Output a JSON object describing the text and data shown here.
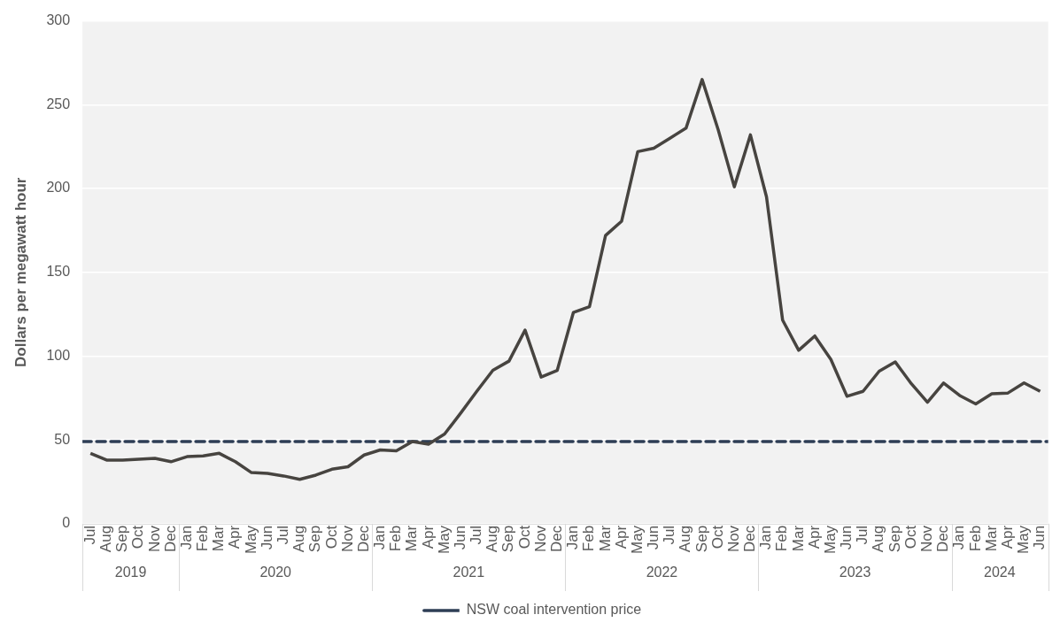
{
  "chart_data": {
    "type": "line",
    "ylabel": "Dollars per megawatt hour",
    "x": [
      "2019-07",
      "2019-08",
      "2019-09",
      "2019-10",
      "2019-11",
      "2019-12",
      "2020-01",
      "2020-02",
      "2020-03",
      "2020-04",
      "2020-05",
      "2020-06",
      "2020-07",
      "2020-08",
      "2020-09",
      "2020-10",
      "2020-11",
      "2020-12",
      "2021-01",
      "2021-02",
      "2021-03",
      "2021-04",
      "2021-05",
      "2021-06",
      "2021-07",
      "2021-08",
      "2021-09",
      "2021-10",
      "2021-11",
      "2021-12",
      "2022-01",
      "2022-02",
      "2022-03",
      "2022-04",
      "2022-05",
      "2022-06",
      "2022-07",
      "2022-08",
      "2022-09",
      "2022-10",
      "2022-11",
      "2022-12",
      "2023-01",
      "2023-02",
      "2023-03",
      "2023-04",
      "2023-05",
      "2023-06",
      "2023-07",
      "2023-08",
      "2023-09",
      "2023-10",
      "2023-11",
      "2023-12",
      "2024-01",
      "2024-02",
      "2024-03",
      "2024-04",
      "2024-05",
      "2024-06"
    ],
    "series": [
      {
        "color": "#474440",
        "values": [
          42,
          38,
          38,
          38.5,
          39,
          37,
          40,
          40.5,
          42,
          37,
          30.5,
          30,
          28.5,
          26.5,
          29,
          32.5,
          34,
          41,
          44,
          43.5,
          49,
          47.5,
          53.5,
          66,
          79,
          91.5,
          97,
          115.5,
          87.5,
          91.5,
          126,
          129.5,
          172,
          180.5,
          222,
          224,
          230,
          236,
          265,
          235,
          201,
          232,
          195,
          121.5,
          103.5,
          112,
          98,
          76,
          79,
          91,
          96.5,
          83.5,
          72.5,
          84,
          76.5,
          71.5,
          77.5,
          78,
          84,
          79
        ]
      }
    ],
    "ref_lines": [
      {
        "axis": "y",
        "value": 49,
        "label": "NSW coal intervention price",
        "color": "#2e3e55",
        "line_style": "dashed"
      }
    ],
    "xlim": [
      "2019-06-16",
      "2024-06-16"
    ],
    "xticks": [
      {
        "value": "2019-07",
        "label": "Jul"
      },
      {
        "value": "2019-08",
        "label": "Aug"
      },
      {
        "value": "2019-09",
        "label": "Sep"
      },
      {
        "value": "2019-10",
        "label": "Oct"
      },
      {
        "value": "2019-11",
        "label": "Nov"
      },
      {
        "value": "2019-12",
        "label": "Dec"
      },
      {
        "value": "2020-01",
        "label": "Jan"
      },
      {
        "value": "2020-02",
        "label": "Feb"
      },
      {
        "value": "2020-03",
        "label": "Mar"
      },
      {
        "value": "2020-04",
        "label": "Apr"
      },
      {
        "value": "2020-05",
        "label": "May"
      },
      {
        "value": "2020-06",
        "label": "Jun"
      },
      {
        "value": "2020-07",
        "label": "Jul"
      },
      {
        "value": "2020-08",
        "label": "Aug"
      },
      {
        "value": "2020-09",
        "label": "Sep"
      },
      {
        "value": "2020-10",
        "label": "Oct"
      },
      {
        "value": "2020-11",
        "label": "Nov"
      },
      {
        "value": "2020-12",
        "label": "Dec"
      },
      {
        "value": "2021-01",
        "label": "Jan"
      },
      {
        "value": "2021-02",
        "label": "Feb"
      },
      {
        "value": "2021-03",
        "label": "Mar"
      },
      {
        "value": "2021-04",
        "label": "Apr"
      },
      {
        "value": "2021-05",
        "label": "May"
      },
      {
        "value": "2021-06",
        "label": "Jun"
      },
      {
        "value": "2021-07",
        "label": "Jul"
      },
      {
        "value": "2021-08",
        "label": "Aug"
      },
      {
        "value": "2021-09",
        "label": "Sep"
      },
      {
        "value": "2021-10",
        "label": "Oct"
      },
      {
        "value": "2021-11",
        "label": "Nov"
      },
      {
        "value": "2021-12",
        "label": "Dec"
      },
      {
        "value": "2022-01",
        "label": "Jan"
      },
      {
        "value": "2022-02",
        "label": "Feb"
      },
      {
        "value": "2022-03",
        "label": "Mar"
      },
      {
        "value": "2022-04",
        "label": "Apr"
      },
      {
        "value": "2022-05",
        "label": "May"
      },
      {
        "value": "2022-06",
        "label": "Jun"
      },
      {
        "value": "2022-07",
        "label": "Jul"
      },
      {
        "value": "2022-08",
        "label": "Aug"
      },
      {
        "value": "2022-09",
        "label": "Sep"
      },
      {
        "value": "2022-10",
        "label": "Oct"
      },
      {
        "value": "2022-11",
        "label": "Nov"
      },
      {
        "value": "2022-12",
        "label": "Dec"
      },
      {
        "value": "2023-01",
        "label": "Jan"
      },
      {
        "value": "2023-02",
        "label": "Feb"
      },
      {
        "value": "2023-03",
        "label": "Mar"
      },
      {
        "value": "2023-04",
        "label": "Apr"
      },
      {
        "value": "2023-05",
        "label": "May"
      },
      {
        "value": "2023-06",
        "label": "Jun"
      },
      {
        "value": "2023-07",
        "label": "Jul"
      },
      {
        "value": "2023-08",
        "label": "Aug"
      },
      {
        "value": "2023-09",
        "label": "Sep"
      },
      {
        "value": "2023-10",
        "label": "Oct"
      },
      {
        "value": "2023-11",
        "label": "Nov"
      },
      {
        "value": "2023-12",
        "label": "Dec"
      },
      {
        "value": "2024-01",
        "label": "Jan"
      },
      {
        "value": "2024-02",
        "label": "Feb"
      },
      {
        "value": "2024-03",
        "label": "Mar"
      },
      {
        "value": "2024-04",
        "label": "Apr"
      },
      {
        "value": "2024-05",
        "label": "May"
      },
      {
        "value": "2024-06",
        "label": "Jun"
      }
    ],
    "x2lim": [
      "2019-06-16",
      "2024-06-16"
    ],
    "x2ticks": [
      {
        "value": "2019-09-16",
        "label": "2019"
      },
      {
        "value": "2020-06-16",
        "label": "2020"
      },
      {
        "value": "2021-06-16",
        "label": "2021"
      },
      {
        "value": "2022-06-16",
        "label": "2022"
      },
      {
        "value": "2023-06-16",
        "label": "2023"
      },
      {
        "value": "2024-03-16",
        "label": "2024"
      }
    ],
    "ylim": [
      0,
      300
    ],
    "yticks": [
      0,
      50,
      100,
      150,
      200,
      250,
      300
    ],
    "grid": "y",
    "legend": "bottom",
    "marker": "none",
    "line_style": "solid"
  }
}
